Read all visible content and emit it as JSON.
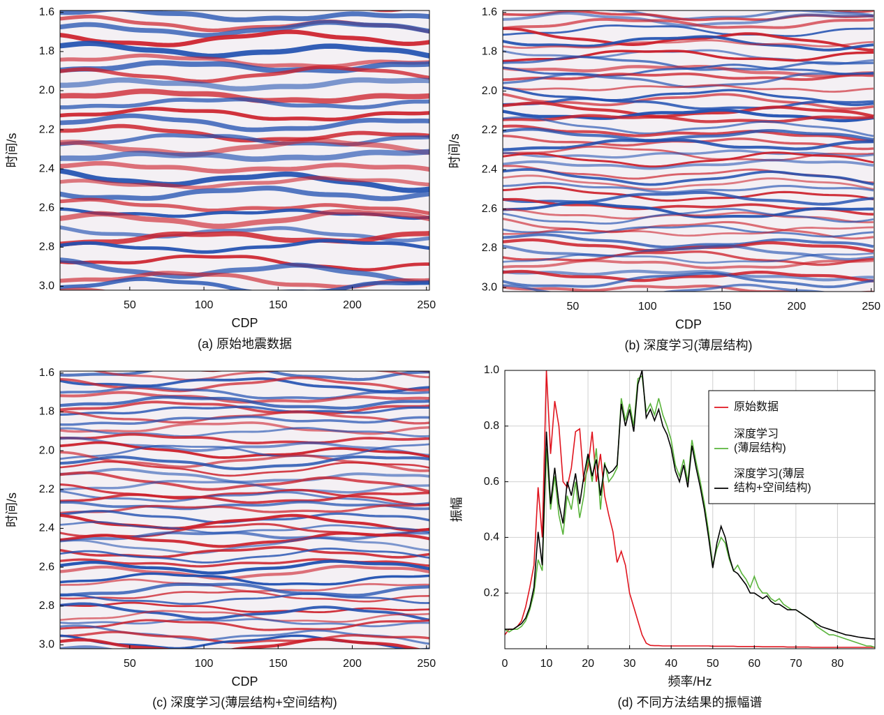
{
  "chart_data": [
    {
      "type": "seismic",
      "caption": "(a) 原始地震数据",
      "xlabel": "CDP",
      "ylabel": "时间/s",
      "y_inverted": true,
      "xlim": [
        3,
        252
      ],
      "ylim": [
        1.59,
        3.02
      ],
      "xticks": [
        50,
        100,
        150,
        200,
        250
      ],
      "yticks": [
        1.6,
        1.8,
        {
          "value": 2,
          "label": "2.0"
        },
        2.2,
        2.4,
        2.6,
        2.8,
        {
          "value": 3,
          "label": "3.0"
        }
      ]
    },
    {
      "type": "seismic",
      "caption": "(b) 深度学习(薄层结构)",
      "xlabel": "CDP",
      "ylabel": "时间/s",
      "y_inverted": true,
      "xlim": [
        3,
        252
      ],
      "ylim": [
        1.59,
        3.02
      ],
      "xticks": [
        50,
        100,
        150,
        200,
        250
      ],
      "yticks": [
        1.6,
        1.8,
        {
          "value": 2,
          "label": "2.0"
        },
        2.2,
        2.4,
        2.6,
        2.8,
        {
          "value": 3,
          "label": "3.0"
        }
      ]
    },
    {
      "type": "seismic",
      "caption": "(c) 深度学习(薄层结构+空间结构)",
      "xlabel": "CDP",
      "ylabel": "时间/s",
      "y_inverted": true,
      "xlim": [
        3,
        252
      ],
      "ylim": [
        1.59,
        3.02
      ],
      "xticks": [
        50,
        100,
        150,
        200,
        250
      ],
      "yticks": [
        1.6,
        1.8,
        {
          "value": 2,
          "label": "2.0"
        },
        2.2,
        2.4,
        2.6,
        2.8,
        {
          "value": 3,
          "label": "3.0"
        }
      ]
    },
    {
      "type": "line",
      "caption": "(d) 不同方法结果的振幅谱",
      "xlabel": "频率/Hz",
      "ylabel": "振幅",
      "grid": true,
      "legend": "top-right",
      "xlim": [
        0,
        89
      ],
      "ylim": [
        0,
        1
      ],
      "xticks": [
        0,
        10,
        20,
        30,
        40,
        50,
        60,
        70,
        80
      ],
      "yticks": [
        0.2,
        0.4,
        0.6,
        0.8,
        {
          "value": 1,
          "label": "1.0"
        }
      ],
      "x": [
        0,
        1,
        2,
        3,
        4,
        5,
        6,
        7,
        8,
        9,
        10,
        11,
        12,
        13,
        14,
        15,
        16,
        17,
        18,
        19,
        20,
        21,
        22,
        23,
        24,
        25,
        26,
        27,
        28,
        29,
        30,
        31,
        32,
        33,
        34,
        35,
        36,
        37,
        38,
        39,
        40,
        41,
        42,
        43,
        44,
        45,
        46,
        47,
        48,
        49,
        50,
        51,
        52,
        53,
        54,
        55,
        56,
        57,
        58,
        59,
        60,
        61,
        62,
        63,
        64,
        65,
        66,
        67,
        68,
        69,
        70,
        71,
        72,
        73,
        74,
        75,
        76,
        77,
        78,
        79,
        80,
        81,
        82,
        83,
        84,
        85,
        86,
        87,
        88,
        89
      ],
      "series": [
        {
          "name": "原始数据",
          "color": "#e0141e",
          "values": [
            0.05,
            0.07,
            0.07,
            0.08,
            0.1,
            0.15,
            0.22,
            0.3,
            0.58,
            0.4,
            1.0,
            0.7,
            0.89,
            0.8,
            0.6,
            0.58,
            0.65,
            0.78,
            0.79,
            0.6,
            0.65,
            0.78,
            0.6,
            0.7,
            0.55,
            0.48,
            0.42,
            0.31,
            0.35,
            0.3,
            0.2,
            0.15,
            0.1,
            0.05,
            0.02,
            0.012,
            0.011,
            0.011,
            0.01,
            0.01,
            0.01,
            0.01,
            0.01,
            0.01,
            0.01,
            0.01,
            0.01,
            0.01,
            0.01,
            0.01,
            0.009,
            0.009,
            0.009,
            0.009,
            0.009,
            0.009,
            0.008,
            0.008,
            0.008,
            0.008,
            0.008,
            0.008,
            0.007,
            0.007,
            0.007,
            0.007,
            0.007,
            0.007,
            0.006,
            0.006,
            0.006,
            0.006,
            0.006,
            0.006,
            0.005,
            0.005,
            0.005,
            0.005,
            0.005,
            0.005,
            0.005,
            0.005,
            0.005,
            0.005,
            0.005,
            0.005,
            0.005,
            0.005,
            0.005,
            0.005
          ]
        },
        {
          "name": "深度学习\n(薄层结构)",
          "color": "#5ab43c",
          "values": [
            0.07,
            0.06,
            0.07,
            0.07,
            0.08,
            0.1,
            0.14,
            0.2,
            0.32,
            0.28,
            0.72,
            0.5,
            0.62,
            0.48,
            0.41,
            0.55,
            0.5,
            0.6,
            0.47,
            0.55,
            0.69,
            0.6,
            0.72,
            0.5,
            0.67,
            0.6,
            0.62,
            0.65,
            0.9,
            0.82,
            0.88,
            0.8,
            0.97,
            0.98,
            0.85,
            0.88,
            0.84,
            0.9,
            0.84,
            0.8,
            0.75,
            0.66,
            0.62,
            0.68,
            0.6,
            0.75,
            0.67,
            0.6,
            0.52,
            0.42,
            0.3,
            0.36,
            0.4,
            0.38,
            0.32,
            0.28,
            0.3,
            0.27,
            0.25,
            0.22,
            0.26,
            0.22,
            0.2,
            0.2,
            0.18,
            0.17,
            0.18,
            0.16,
            0.15,
            0.14,
            0.14,
            0.13,
            0.12,
            0.11,
            0.1,
            0.08,
            0.07,
            0.06,
            0.05,
            0.05,
            0.045,
            0.04,
            0.035,
            0.03,
            0.025,
            0.02,
            0.015,
            0.01,
            0.01,
            0.005
          ]
        },
        {
          "name": "深度学习(薄层\n结构+空间结构)",
          "color": "#000000",
          "values": [
            0.07,
            0.07,
            0.07,
            0.08,
            0.09,
            0.11,
            0.15,
            0.22,
            0.42,
            0.3,
            0.78,
            0.52,
            0.65,
            0.52,
            0.45,
            0.6,
            0.55,
            0.63,
            0.52,
            0.62,
            0.7,
            0.62,
            0.68,
            0.55,
            0.66,
            0.63,
            0.64,
            0.66,
            0.88,
            0.8,
            0.86,
            0.78,
            0.95,
            1.0,
            0.83,
            0.86,
            0.82,
            0.86,
            0.8,
            0.77,
            0.72,
            0.64,
            0.6,
            0.66,
            0.58,
            0.73,
            0.65,
            0.58,
            0.5,
            0.4,
            0.29,
            0.38,
            0.44,
            0.4,
            0.33,
            0.28,
            0.27,
            0.25,
            0.23,
            0.2,
            0.2,
            0.19,
            0.18,
            0.19,
            0.17,
            0.16,
            0.16,
            0.15,
            0.14,
            0.14,
            0.14,
            0.13,
            0.12,
            0.11,
            0.1,
            0.09,
            0.08,
            0.075,
            0.07,
            0.065,
            0.06,
            0.055,
            0.05,
            0.048,
            0.045,
            0.042,
            0.04,
            0.038,
            0.036,
            0.035
          ]
        }
      ]
    }
  ]
}
